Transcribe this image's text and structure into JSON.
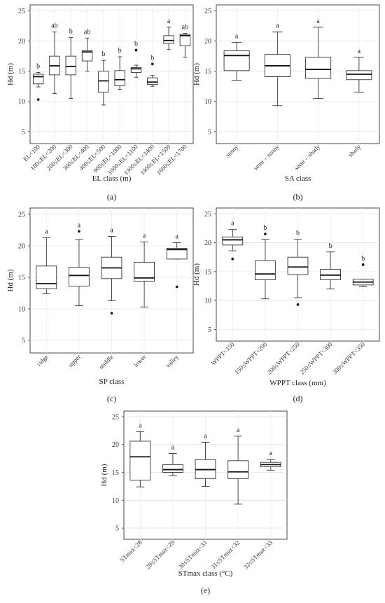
{
  "chart_data": [
    {
      "type": "box",
      "panel": "(a)",
      "xlabel": "EL class (m)",
      "ylabel": "Hd (m)",
      "ylim": [
        3,
        26
      ],
      "yticks": [
        5,
        10,
        15,
        20,
        25
      ],
      "grid": true,
      "categories": [
        "EL<100",
        "100≤EL<200",
        "200≤EL<300",
        "300≤EL<400",
        "400≤EL<500",
        "900≤EL<1000",
        "1000≤EL<1100",
        "1300≤EL<1400",
        "1400≤EL<1500",
        "1600≤EL<1700"
      ],
      "boxes": [
        {
          "min": 12.4,
          "q1": 12.9,
          "median": 14.1,
          "q3": 14.5,
          "max": 14.8,
          "outliers": [
            10.3
          ],
          "letter": "b"
        },
        {
          "min": 11.3,
          "q1": 14.4,
          "median": 15.9,
          "q3": 17.5,
          "max": 21.5,
          "outliers": [],
          "letter": "ab"
        },
        {
          "min": 10.5,
          "q1": 14.4,
          "median": 15.8,
          "q3": 17.5,
          "max": 20.6,
          "outliers": [],
          "letter": "b"
        },
        {
          "min": 15.0,
          "q1": 16.7,
          "median": 18.2,
          "q3": 18.4,
          "max": 20.5,
          "outliers": [],
          "letter": "ab"
        },
        {
          "min": 9.4,
          "q1": 11.5,
          "median": 13.4,
          "q3": 15.0,
          "max": 16.8,
          "outliers": [],
          "letter": "b"
        },
        {
          "min": 12.0,
          "q1": 12.6,
          "median": 13.6,
          "q3": 15.1,
          "max": 17.4,
          "outliers": [],
          "letter": "b"
        },
        {
          "min": 14.0,
          "q1": 14.8,
          "median": 15.4,
          "q3": 15.6,
          "max": 16.0,
          "outliers": [
            18.5
          ],
          "letter": "b"
        },
        {
          "min": 12.5,
          "q1": 12.8,
          "median": 13.2,
          "q3": 13.9,
          "max": 14.3,
          "outliers": [
            16.2
          ],
          "letter": "b"
        },
        {
          "min": 18.6,
          "q1": 19.6,
          "median": 20.1,
          "q3": 20.9,
          "max": 22.3,
          "outliers": [],
          "letter": "a"
        },
        {
          "min": 17.3,
          "q1": 19.2,
          "median": 20.9,
          "q3": 21.1,
          "max": 21.3,
          "outliers": [],
          "letter": "ab"
        }
      ]
    },
    {
      "type": "box",
      "panel": "(b)",
      "xlabel": "SA class",
      "ylabel": "Hd (m)",
      "ylim": [
        3,
        26
      ],
      "yticks": [
        5,
        10,
        15,
        20,
        25
      ],
      "grid": true,
      "categories": [
        "sunny",
        "semi – sunny",
        "semi – shady",
        "shady"
      ],
      "boxes": [
        {
          "min": 13.5,
          "q1": 15.1,
          "median": 17.6,
          "q3": 18.4,
          "max": 19.8,
          "outliers": [],
          "letter": "a"
        },
        {
          "min": 9.3,
          "q1": 14.1,
          "median": 15.9,
          "q3": 17.8,
          "max": 21.5,
          "outliers": [],
          "letter": "a"
        },
        {
          "min": 10.5,
          "q1": 13.8,
          "median": 15.3,
          "q3": 17.3,
          "max": 22.3,
          "outliers": [],
          "letter": "a"
        },
        {
          "min": 11.5,
          "q1": 13.6,
          "median": 14.5,
          "q3": 15.1,
          "max": 17.3,
          "outliers": [],
          "letter": "a"
        }
      ]
    },
    {
      "type": "box",
      "panel": "(c)",
      "xlabel": "SP class",
      "ylabel": "Hd (m)",
      "ylim": [
        3,
        26
      ],
      "yticks": [
        5,
        10,
        15,
        20,
        25
      ],
      "grid": true,
      "categories": [
        "ridge",
        "upper",
        "middle",
        "lower",
        "valley"
      ],
      "boxes": [
        {
          "min": 12.4,
          "q1": 13.2,
          "median": 14.0,
          "q3": 16.8,
          "max": 21.3,
          "outliers": [],
          "letter": "a"
        },
        {
          "min": 10.5,
          "q1": 13.6,
          "median": 15.3,
          "q3": 16.6,
          "max": 21.0,
          "outliers": [
            22.3
          ],
          "letter": "a"
        },
        {
          "min": 11.3,
          "q1": 14.8,
          "median": 16.5,
          "q3": 18.2,
          "max": 21.5,
          "outliers": [
            9.3
          ],
          "letter": "a"
        },
        {
          "min": 10.3,
          "q1": 14.4,
          "median": 14.9,
          "q3": 17.4,
          "max": 20.6,
          "outliers": [],
          "letter": "a"
        },
        {
          "min": 17.9,
          "q1": 17.9,
          "median": 19.4,
          "q3": 19.6,
          "max": 20.5,
          "outliers": [
            13.5
          ],
          "letter": "a"
        }
      ]
    },
    {
      "type": "box",
      "panel": "(d)",
      "xlabel": "WPPT class (mm)",
      "ylabel": "Hd (m)",
      "ylim": [
        3,
        26
      ],
      "yticks": [
        5,
        10,
        15,
        20,
        25
      ],
      "grid": true,
      "categories": [
        "WPPT<150",
        "150≤WPPT<200",
        "200≤WPPT<250",
        "250≤WPPT<300",
        "300≤WPPT<350"
      ],
      "boxes": [
        {
          "min": 18.6,
          "q1": 19.6,
          "median": 20.5,
          "q3": 21.0,
          "max": 22.3,
          "outliers": [
            17.2
          ],
          "letter": "a"
        },
        {
          "min": 10.3,
          "q1": 13.6,
          "median": 14.6,
          "q3": 16.9,
          "max": 20.6,
          "outliers": [
            21.5
          ],
          "letter": "b"
        },
        {
          "min": 10.5,
          "q1": 14.5,
          "median": 15.8,
          "q3": 17.5,
          "max": 20.6,
          "outliers": [
            9.3
          ],
          "letter": "b"
        },
        {
          "min": 12.0,
          "q1": 13.6,
          "median": 14.4,
          "q3": 15.4,
          "max": 18.4,
          "outliers": [],
          "letter": "b"
        },
        {
          "min": 12.4,
          "q1": 12.7,
          "median": 13.2,
          "q3": 13.7,
          "max": 13.7,
          "outliers": [
            16.2
          ],
          "letter": "b"
        }
      ]
    },
    {
      "type": "box",
      "panel": "(e)",
      "xlabel": "STmax class (°C)",
      "ylabel": "Hd (m)",
      "ylim": [
        3,
        26
      ],
      "yticks": [
        5,
        10,
        15,
        20,
        25
      ],
      "grid": true,
      "categories": [
        "STmax<28",
        "28≤STmax<29",
        "30≤STmax<31",
        "31≤STmax<32",
        "32≤STmax<33"
      ],
      "boxes": [
        {
          "min": 12.4,
          "q1": 13.6,
          "median": 17.8,
          "q3": 20.6,
          "max": 22.3,
          "outliers": [],
          "letter": "a"
        },
        {
          "min": 14.4,
          "q1": 15.0,
          "median": 15.5,
          "q3": 16.4,
          "max": 18.4,
          "outliers": [],
          "letter": "a"
        },
        {
          "min": 12.5,
          "q1": 13.9,
          "median": 15.5,
          "q3": 17.3,
          "max": 20.4,
          "outliers": [],
          "letter": "a"
        },
        {
          "min": 9.3,
          "q1": 13.9,
          "median": 15.1,
          "q3": 17.1,
          "max": 21.5,
          "outliers": [],
          "letter": "a"
        },
        {
          "min": 15.4,
          "q1": 16.0,
          "median": 16.4,
          "q3": 16.8,
          "max": 17.3,
          "outliers": [],
          "letter": "a"
        }
      ]
    }
  ]
}
